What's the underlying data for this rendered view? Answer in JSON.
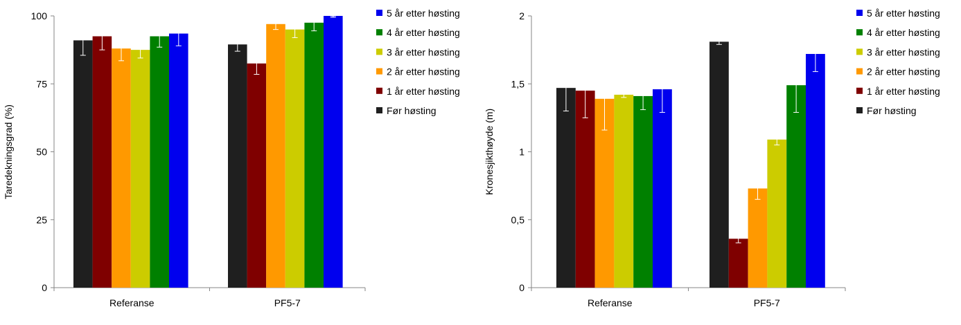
{
  "chart_data": [
    {
      "type": "bar",
      "ylabel": "Taredekningsgrad (%)",
      "ylim": [
        0,
        100
      ],
      "yticks": [
        "0",
        "25",
        "50",
        "75",
        "100"
      ],
      "ytick_values": [
        0,
        25,
        50,
        75,
        100
      ],
      "categories": [
        "Referanse",
        "PF5-7"
      ],
      "series": [
        {
          "name": "Før høsting",
          "color": "#1f1f1f",
          "values": [
            91,
            89.5
          ],
          "errors": [
            5.5,
            2.5
          ]
        },
        {
          "name": "1 år etter høsting",
          "color": "#7f0000",
          "values": [
            92.5,
            82.5
          ],
          "errors": [
            5,
            4
          ]
        },
        {
          "name": "2 år etter høsting",
          "color": "#ff9900",
          "values": [
            88,
            97
          ],
          "errors": [
            4.5,
            2
          ]
        },
        {
          "name": "3 år etter høsting",
          "color": "#cccc00",
          "values": [
            87.5,
            95
          ],
          "errors": [
            3,
            3
          ]
        },
        {
          "name": "4 år etter høsting",
          "color": "#008000",
          "values": [
            92.5,
            97.5
          ],
          "errors": [
            4,
            3
          ]
        },
        {
          "name": "5 år etter høsting",
          "color": "#0000ee",
          "values": [
            93.5,
            100
          ],
          "errors": [
            4.5,
            0.5
          ]
        }
      ],
      "legend": "right"
    },
    {
      "type": "bar",
      "ylabel": "Kronesjikthøyde (m)",
      "ylim": [
        0,
        2
      ],
      "yticks": [
        "0",
        "0,5",
        "1",
        "1,5",
        "2"
      ],
      "ytick_values": [
        0,
        0.5,
        1,
        1.5,
        2
      ],
      "categories": [
        "Referanse",
        "PF5-7"
      ],
      "series": [
        {
          "name": "Før høsting",
          "color": "#1f1f1f",
          "values": [
            1.47,
            1.81
          ],
          "errors": [
            0.17,
            0.02
          ]
        },
        {
          "name": "1 år etter høsting",
          "color": "#7f0000",
          "values": [
            1.45,
            0.36
          ],
          "errors": [
            0.2,
            0.03
          ]
        },
        {
          "name": "2 år etter høsting",
          "color": "#ff9900",
          "values": [
            1.39,
            0.73
          ],
          "errors": [
            0.23,
            0.08
          ]
        },
        {
          "name": "3 år etter høsting",
          "color": "#cccc00",
          "values": [
            1.42,
            1.09
          ],
          "errors": [
            0.02,
            0.04
          ]
        },
        {
          "name": "4 år etter høsting",
          "color": "#008000",
          "values": [
            1.41,
            1.49
          ],
          "errors": [
            0.1,
            0.2
          ]
        },
        {
          "name": "5 år etter høsting",
          "color": "#0000ee",
          "values": [
            1.46,
            1.72
          ],
          "errors": [
            0.17,
            0.13
          ]
        }
      ],
      "legend": "right"
    }
  ]
}
